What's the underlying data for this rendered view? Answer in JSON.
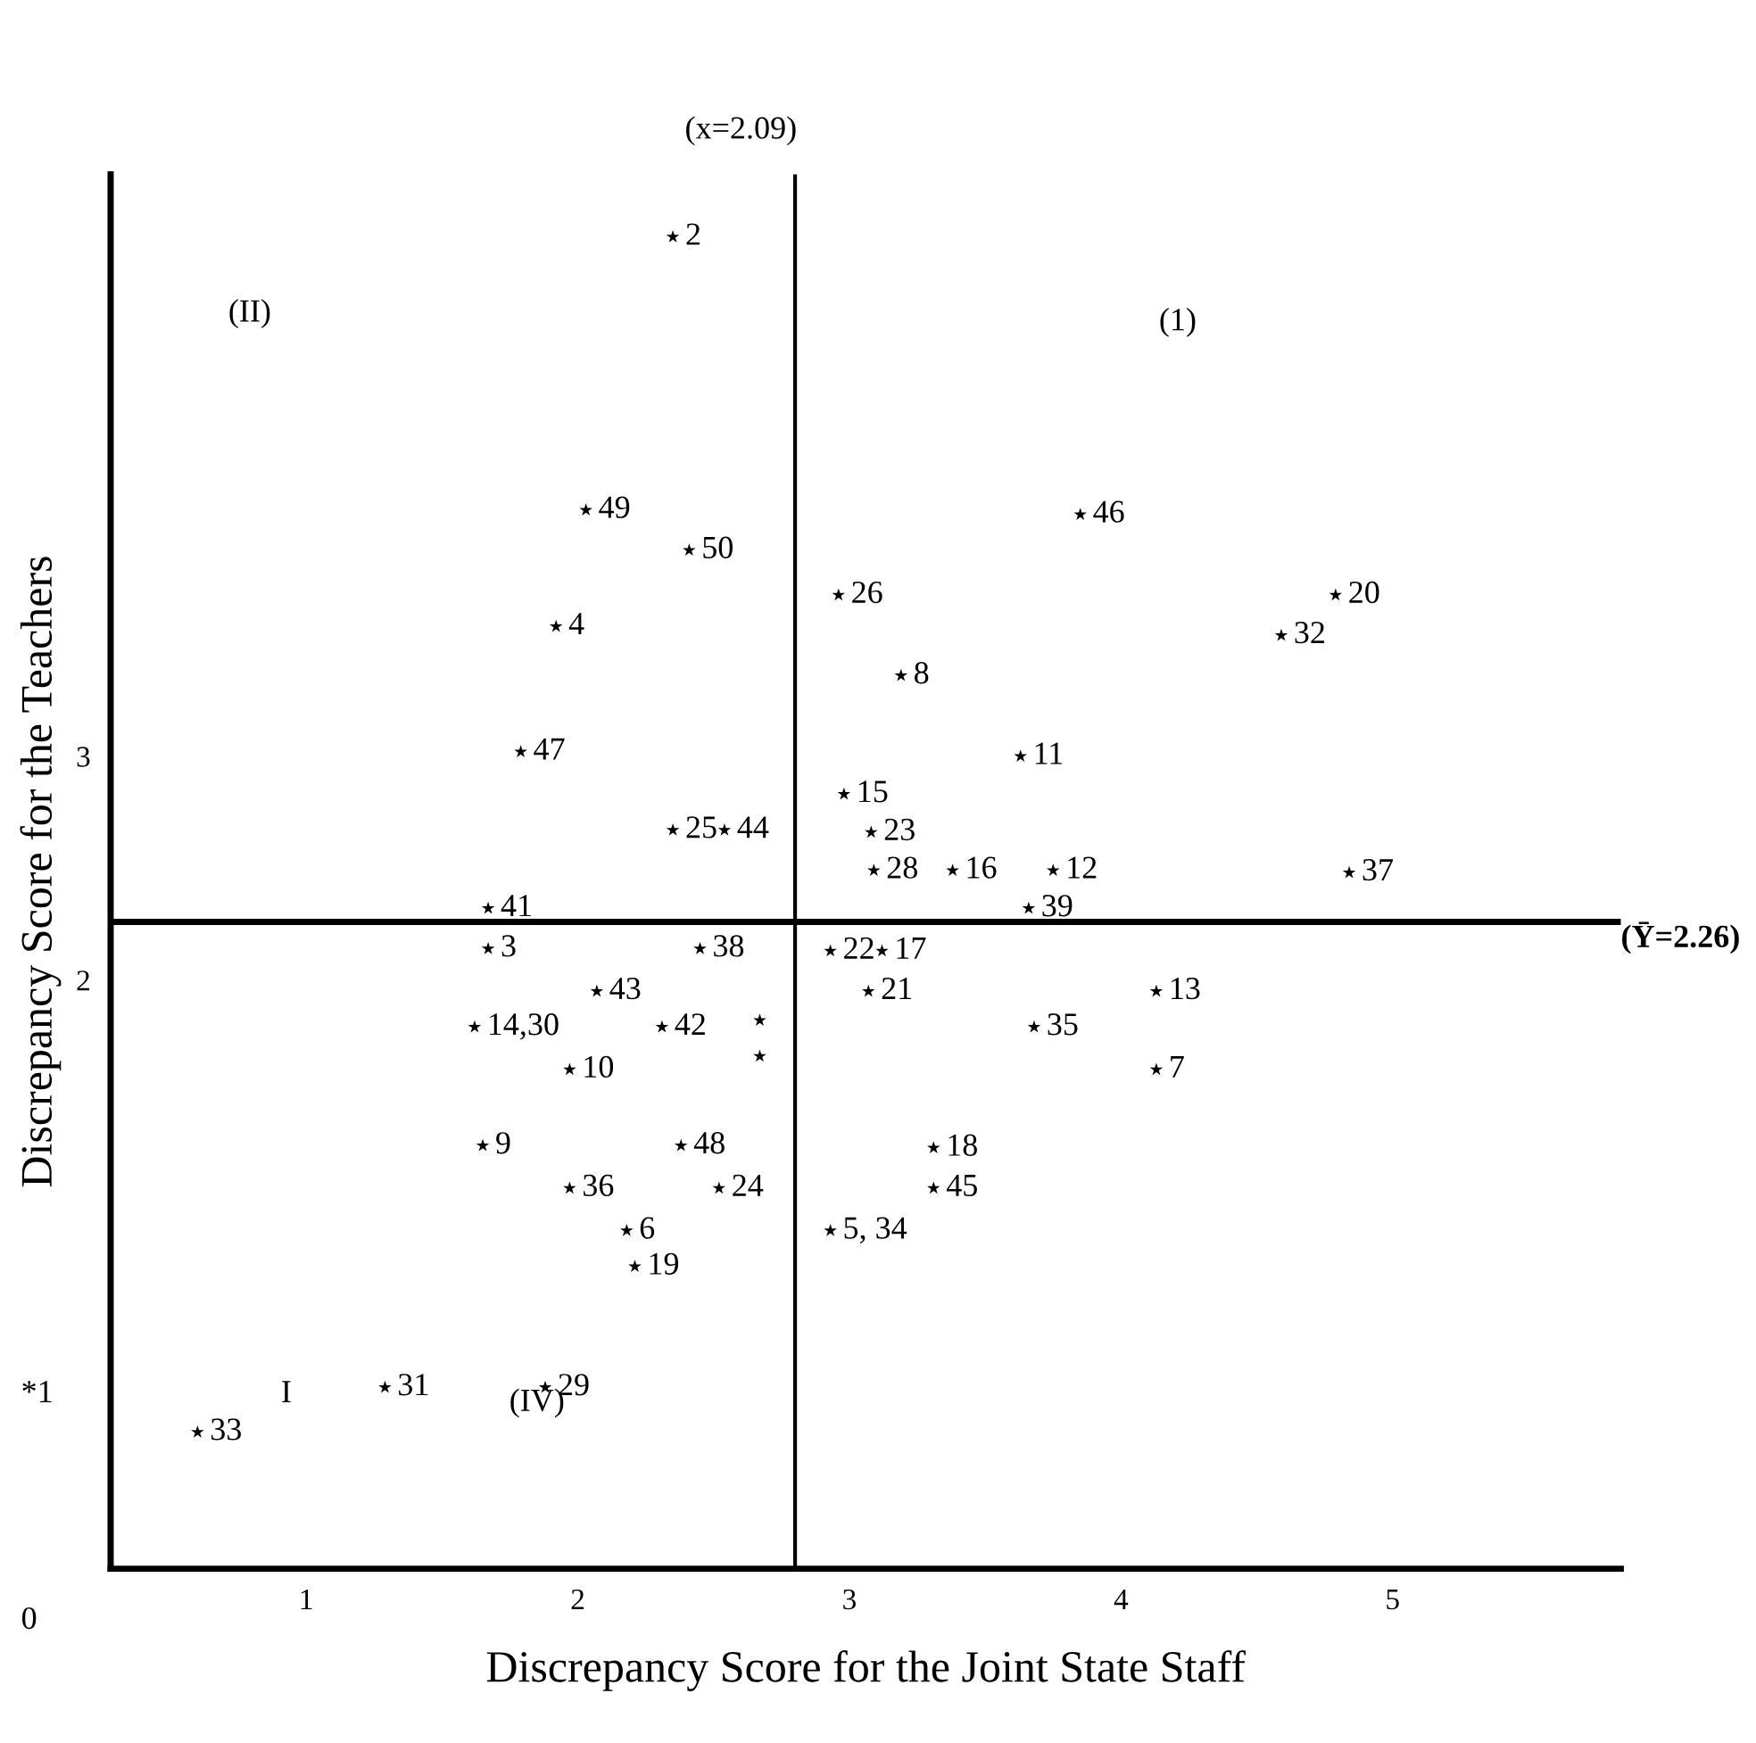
{
  "chart_data": {
    "type": "scatter",
    "xlabel": "Discrepancy Score for the Joint State Staff",
    "ylabel": "Discrepancy Score for the Teachers",
    "xlim": [
      0.28,
      5.84
    ],
    "ylim": [
      -0.63,
      5.6
    ],
    "xticks": [
      1,
      2,
      3,
      4,
      5
    ],
    "yticks": [
      2,
      3
    ],
    "grid": false,
    "legend": false,
    "marker": "star",
    "x": [
      2.35,
      2.03,
      2.41,
      1.92,
      1.79,
      2.35,
      2.54,
      1.67,
      1.67,
      2.45,
      2.07,
      1.62,
      2.31,
      1.97,
      1.65,
      1.97,
      2.52,
      2.18,
      2.21,
      2.38,
      1.29,
      1.88,
      0.6,
      2.67,
      2.67,
      3.85,
      2.96,
      4.79,
      4.59,
      3.19,
      3.63,
      2.98,
      3.08,
      3.09,
      3.38,
      3.75,
      4.84,
      3.66,
      2.93,
      3.12,
      3.07,
      4.13,
      3.68,
      4.13,
      3.31,
      3.31,
      2.93
    ],
    "series": [
      {
        "color": "#000000",
        "values": [
          5.32,
          4.1,
          3.92,
          3.58,
          3.02,
          2.67,
          2.67,
          2.32,
          2.14,
          2.14,
          1.95,
          1.79,
          1.79,
          1.6,
          1.26,
          1.07,
          1.07,
          0.88,
          0.72,
          1.26,
          0.18,
          0.18,
          -0.02,
          1.82,
          1.66,
          4.08,
          3.72,
          3.72,
          3.54,
          3.36,
          3.0,
          2.83,
          2.66,
          2.49,
          2.49,
          2.49,
          2.48,
          2.32,
          2.13,
          2.13,
          1.95,
          1.95,
          1.79,
          1.6,
          1.25,
          1.07,
          0.88
        ]
      }
    ],
    "ref_lines": [
      {
        "axis": "x",
        "value": 2.8,
        "color": "#000000"
      },
      {
        "axis": "y",
        "value": 2.26,
        "label": "(Ȳ=2.26)",
        "color": "#000000"
      }
    ],
    "annotations": [
      "(x=2.09)",
      "*1",
      "0",
      "(II)",
      "(1)",
      "(IV)",
      "I",
      {
        "text": "2",
        "x": 2.35,
        "y": 5.32
      },
      {
        "text": "49",
        "x": 2.03,
        "y": 4.1
      },
      {
        "text": "50",
        "x": 2.41,
        "y": 3.92
      },
      {
        "text": "4",
        "x": 1.92,
        "y": 3.58
      },
      {
        "text": "47",
        "x": 1.79,
        "y": 3.02
      },
      {
        "text": "25",
        "x": 2.35,
        "y": 2.67
      },
      {
        "text": "44",
        "x": 2.54,
        "y": 2.67
      },
      {
        "text": "41",
        "x": 1.67,
        "y": 2.32
      },
      {
        "text": "3",
        "x": 1.67,
        "y": 2.14
      },
      {
        "text": "38",
        "x": 2.45,
        "y": 2.14
      },
      {
        "text": "43",
        "x": 2.07,
        "y": 1.95
      },
      {
        "text": "14,30",
        "x": 1.62,
        "y": 1.79
      },
      {
        "text": "42",
        "x": 2.31,
        "y": 1.79
      },
      {
        "text": "10",
        "x": 1.97,
        "y": 1.6
      },
      {
        "text": "9",
        "x": 1.65,
        "y": 1.26
      },
      {
        "text": "36",
        "x": 1.97,
        "y": 1.07
      },
      {
        "text": "24",
        "x": 2.52,
        "y": 1.07
      },
      {
        "text": "6",
        "x": 2.18,
        "y": 0.88
      },
      {
        "text": "19",
        "x": 2.21,
        "y": 0.72
      },
      {
        "text": "48",
        "x": 2.38,
        "y": 1.26
      },
      {
        "text": "31",
        "x": 1.29,
        "y": 0.18
      },
      {
        "text": "29",
        "x": 1.88,
        "y": 0.18
      },
      {
        "text": "33",
        "x": 0.6,
        "y": -0.02
      },
      {
        "text": "46",
        "x": 3.85,
        "y": 4.08
      },
      {
        "text": "26",
        "x": 2.96,
        "y": 3.72
      },
      {
        "text": "20",
        "x": 4.79,
        "y": 3.72
      },
      {
        "text": "32",
        "x": 4.59,
        "y": 3.54
      },
      {
        "text": "8",
        "x": 3.19,
        "y": 3.36
      },
      {
        "text": "11",
        "x": 3.63,
        "y": 3.0
      },
      {
        "text": "15",
        "x": 2.98,
        "y": 2.83
      },
      {
        "text": "23",
        "x": 3.08,
        "y": 2.66
      },
      {
        "text": "28",
        "x": 3.09,
        "y": 2.49
      },
      {
        "text": "16",
        "x": 3.38,
        "y": 2.49
      },
      {
        "text": "12",
        "x": 3.75,
        "y": 2.49
      },
      {
        "text": "37",
        "x": 4.84,
        "y": 2.48
      },
      {
        "text": "39",
        "x": 3.66,
        "y": 2.32
      },
      {
        "text": "22",
        "x": 2.93,
        "y": 2.13
      },
      {
        "text": "17",
        "x": 3.12,
        "y": 2.13
      },
      {
        "text": "21",
        "x": 3.07,
        "y": 1.95
      },
      {
        "text": "13",
        "x": 4.13,
        "y": 1.95
      },
      {
        "text": "35",
        "x": 3.68,
        "y": 1.79
      },
      {
        "text": "7",
        "x": 4.13,
        "y": 1.6
      },
      {
        "text": "18",
        "x": 3.31,
        "y": 1.25
      },
      {
        "text": "45",
        "x": 3.31,
        "y": 1.07
      },
      {
        "text": "5, 34",
        "x": 2.93,
        "y": 0.88
      }
    ]
  }
}
